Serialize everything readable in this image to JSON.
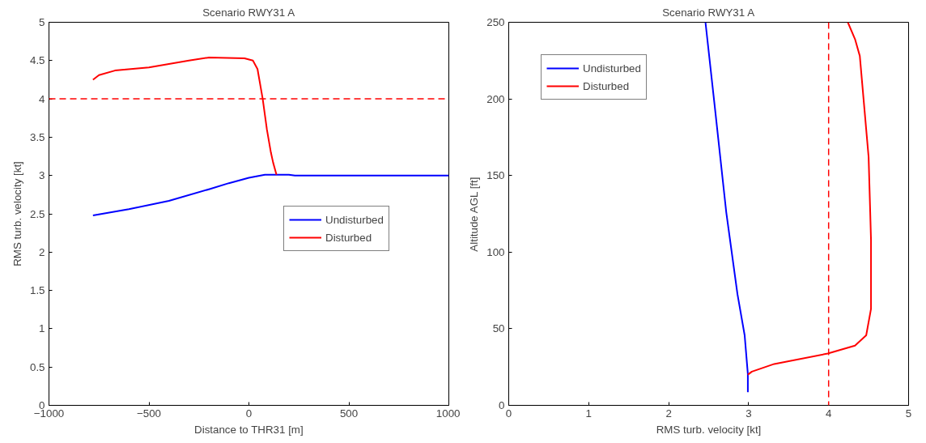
{
  "chart_data": [
    {
      "type": "line",
      "title": "Scenario RWY31 A",
      "xlabel": "Distance to THR31 [m]",
      "ylabel": "RMS turb. velocity [kt]",
      "xlim": [
        -1000,
        1000
      ],
      "ylim": [
        0,
        5
      ],
      "xticks": [
        -1000,
        -500,
        0,
        500,
        1000
      ],
      "yticks": [
        0,
        0.5,
        1,
        1.5,
        2,
        2.5,
        3,
        3.5,
        4,
        4.5,
        5
      ],
      "grid": false,
      "legend": "right",
      "line_style": "solid",
      "series": [
        {
          "name": "Undisturbed",
          "color": "#0000ff",
          "x": [
            -780,
            -600,
            -400,
            -200,
            -100,
            0,
            80,
            200,
            230,
            1000
          ],
          "values": [
            2.48,
            2.56,
            2.67,
            2.82,
            2.9,
            2.97,
            3.01,
            3.01,
            3.0,
            3.0
          ]
        },
        {
          "name": "Disturbed",
          "color": "#ff0000",
          "x": [
            -780,
            -750,
            -670,
            -500,
            -300,
            -200,
            -22,
            20,
            43,
            69,
            90,
            110,
            121,
            138
          ],
          "values": [
            4.25,
            4.31,
            4.37,
            4.41,
            4.5,
            4.54,
            4.53,
            4.5,
            4.39,
            4.0,
            3.6,
            3.3,
            3.17,
            3.01
          ]
        }
      ],
      "ref_lines": [
        {
          "axis": "y",
          "value": 4,
          "color": "#ff0000",
          "line_style": "dashed"
        }
      ]
    },
    {
      "type": "line",
      "title": "Scenario RWY31 A",
      "xlabel": "RMS turb. velocity [kt]",
      "ylabel": "Altitude AGL [ft]",
      "xlim": [
        0,
        5
      ],
      "ylim": [
        0,
        250
      ],
      "xticks": [
        0,
        1,
        2,
        3,
        4,
        5
      ],
      "yticks": [
        0,
        50,
        100,
        150,
        200,
        250
      ],
      "grid": false,
      "legend": "top left",
      "line_style": "solid",
      "series": [
        {
          "name": "Undisturbed",
          "color": "#0000ff",
          "x": [
            2.46,
            2.57,
            2.72,
            2.86,
            2.95,
            2.99,
            2.99
          ],
          "values": [
            250,
            198,
            126,
            72.6,
            45.7,
            20.4,
            8.6
          ]
        },
        {
          "name": "Disturbed",
          "color": "#ff0000",
          "x": [
            2.99,
            3.04,
            3.32,
            3.99,
            4.33,
            4.47,
            4.53,
            4.53,
            4.5,
            4.44,
            4.39,
            4.33,
            4.24
          ],
          "values": [
            20,
            22,
            27,
            33.8,
            39,
            45.7,
            63,
            108,
            162,
            198,
            228,
            239,
            250
          ]
        }
      ],
      "ref_lines": [
        {
          "axis": "x",
          "value": 4,
          "color": "#ff0000",
          "line_style": "dashed"
        }
      ]
    }
  ]
}
